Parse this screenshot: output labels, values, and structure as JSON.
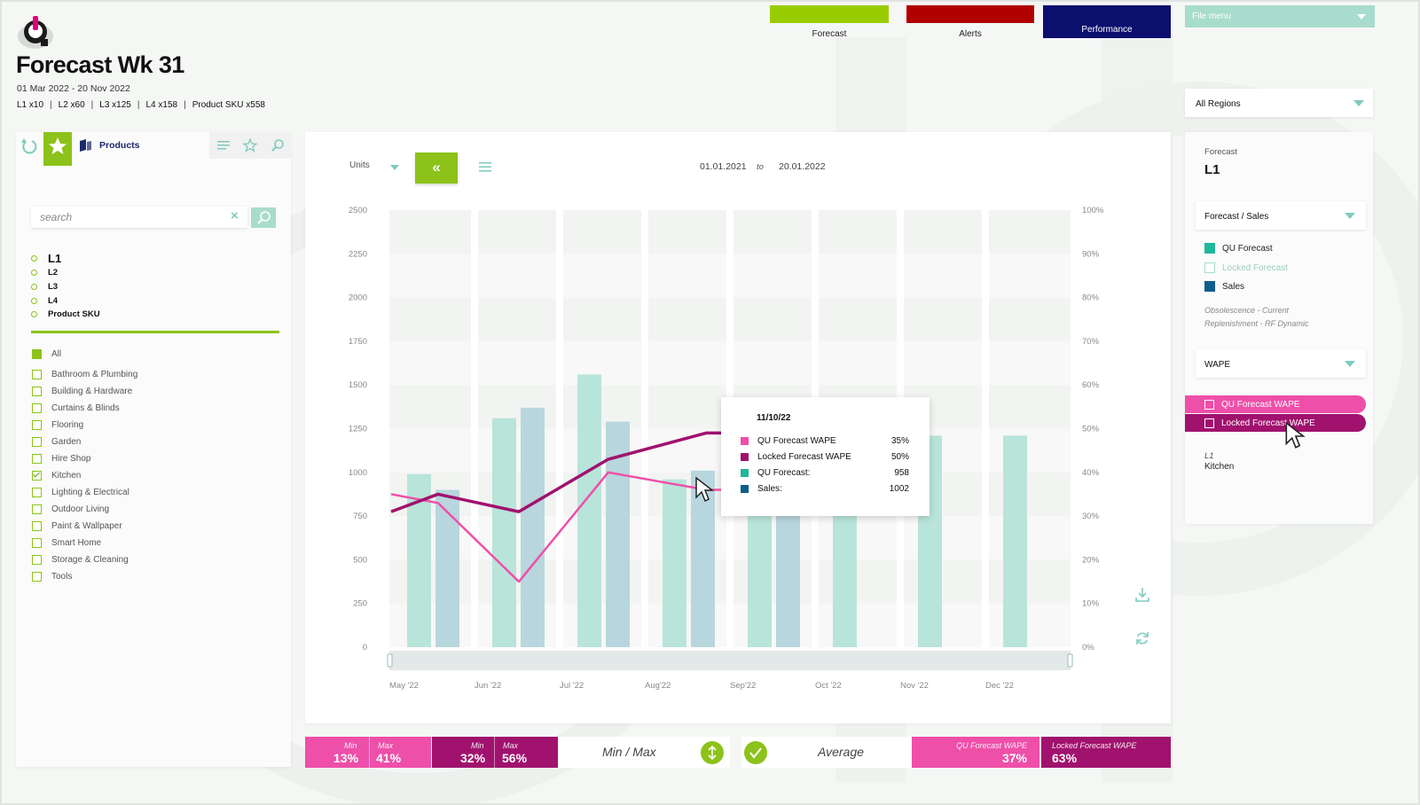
{
  "header": {
    "title": "Forecast Wk 31",
    "date_range": "01 Mar 2022 - 20 Nov 2022",
    "levels": [
      "L1 x10",
      "L2 x60",
      "L3 x125",
      "L4 x158",
      "Product SKU x558"
    ]
  },
  "topnav": {
    "forecast_label": "Forecast",
    "alerts_label": "Alerts",
    "performance_label": "Performance",
    "file_menu": "File menu",
    "colors": {
      "forecast": "#99cc00",
      "alerts": "#b00000",
      "performance": "#0b0f6e"
    }
  },
  "regions": {
    "selected": "All Regions"
  },
  "left_panel": {
    "tab_label": "Products",
    "search_placeholder": "search",
    "levels": [
      "L1",
      "L2",
      "L3",
      "L4",
      "Product SKU"
    ],
    "categories": [
      {
        "label": "All",
        "state": "filled"
      },
      {
        "label": "Bathroom & Plumbing",
        "state": "empty"
      },
      {
        "label": "Building & Hardware",
        "state": "empty"
      },
      {
        "label": "Curtains & Blinds",
        "state": "empty"
      },
      {
        "label": "Flooring",
        "state": "empty"
      },
      {
        "label": "Garden",
        "state": "empty"
      },
      {
        "label": "Hire Shop",
        "state": "empty"
      },
      {
        "label": "Kitchen",
        "state": "checked"
      },
      {
        "label": "Lighting & Electrical",
        "state": "empty"
      },
      {
        "label": "Outdoor Living",
        "state": "empty"
      },
      {
        "label": "Paint & Wallpaper",
        "state": "empty"
      },
      {
        "label": "Smart Home",
        "state": "empty"
      },
      {
        "label": "Storage & Cleaning",
        "state": "empty"
      },
      {
        "label": "Tools",
        "state": "empty"
      }
    ]
  },
  "chart_controls": {
    "units_label": "Units",
    "range_from": "01.01.2021",
    "range_to_word": "to",
    "range_to": "20.01.2022"
  },
  "chart_data": {
    "type": "bar",
    "categories": [
      "May '22",
      "Jun '22",
      "Jul '22",
      "Aug'22",
      "Sep'22",
      "Oct '22",
      "Nov '22",
      "Dec '22"
    ],
    "y_left_ticks": [
      "2500",
      "2250",
      "2000",
      "1750",
      "1500",
      "1250",
      "1000",
      "750",
      "500",
      "250",
      "0"
    ],
    "y_right_ticks": [
      "100%",
      "90%",
      "80%",
      "70%",
      "60%",
      "50%",
      "40%",
      "30%",
      "20%",
      "10%",
      "0%"
    ],
    "ylim": [
      0,
      2500
    ],
    "y2lim": [
      0,
      100
    ],
    "series": [
      {
        "name": "QU Forecast",
        "kind": "bar",
        "color": "#b9e4da",
        "values": [
          990,
          1310,
          1560,
          960,
          930,
          920,
          1210,
          1210
        ]
      },
      {
        "name": "Sales",
        "kind": "bar",
        "color": "#b8d6dd",
        "values": [
          900,
          1370,
          1290,
          1010,
          900,
          null,
          null,
          null
        ]
      },
      {
        "name": "QU Forecast WAPE",
        "kind": "line",
        "axis": "right",
        "color": "#ee4fa9",
        "points": [
          [
            0.0,
            35
          ],
          [
            0.55,
            33
          ],
          [
            1.5,
            15
          ],
          [
            2.55,
            40
          ],
          [
            3.7,
            36
          ],
          [
            4.15,
            36
          ]
        ]
      },
      {
        "name": "Locked Forecast WAPE",
        "kind": "line",
        "axis": "right",
        "color": "#a0126e",
        "points": [
          [
            0.0,
            31
          ],
          [
            0.55,
            35
          ],
          [
            1.5,
            31
          ],
          [
            2.55,
            43
          ],
          [
            3.7,
            49
          ],
          [
            4.15,
            49
          ]
        ]
      }
    ]
  },
  "tooltip": {
    "date": "11/10/22",
    "rows": [
      {
        "label": "QU Forecast WAPE",
        "value": "35%",
        "color": "#ee4fa9"
      },
      {
        "label": "Locked Forecast WAPE",
        "value": "50%",
        "color": "#a0126e"
      },
      {
        "label": "QU Forecast:",
        "value": "958",
        "color": "#1fb89a"
      },
      {
        "label": "Sales:",
        "value": "1002",
        "color": "#0f5d8c"
      }
    ]
  },
  "stats": {
    "qu_min_label": "Min",
    "qu_min": "13%",
    "qu_max_label": "Max",
    "qu_max": "41%",
    "lk_min_label": "Min",
    "lk_min": "32%",
    "lk_max_label": "Max",
    "lk_max": "56%",
    "minmax_label": "Min / Max",
    "average_label": "Average",
    "qu_avg_label": "QU Forecast WAPE",
    "qu_avg": "37%",
    "lk_avg_label": "Locked Forecast WAPE",
    "lk_avg": "63%",
    "colors": {
      "qu": "#ee4fa9",
      "qu_dark": "#e03a9c",
      "locked": "#a0126e",
      "locked_dark": "#8d0e60"
    }
  },
  "right_panel": {
    "forecast_label": "Forecast",
    "level": "L1",
    "view_dropdown": "Forecast / Sales",
    "legend": [
      {
        "label": "QU Forecast",
        "color": "#1fb89a",
        "style": "filled"
      },
      {
        "label": "Locked Forecast",
        "color": "#a8dccc",
        "style": "outline"
      },
      {
        "label": "Sales",
        "color": "#0f5d8c",
        "style": "filled"
      }
    ],
    "notes": [
      "Obsolescence - Current",
      "Replenishment - RF Dynamic"
    ],
    "metric_dropdown": "WAPE",
    "wape_options": [
      {
        "label": "QU Forecast WAPE",
        "color": "#ee4fa9"
      },
      {
        "label": "Locked Forecast WAPE",
        "color": "#a0126e"
      }
    ],
    "selection_level": "L1",
    "selection_category": "Kitchen"
  }
}
